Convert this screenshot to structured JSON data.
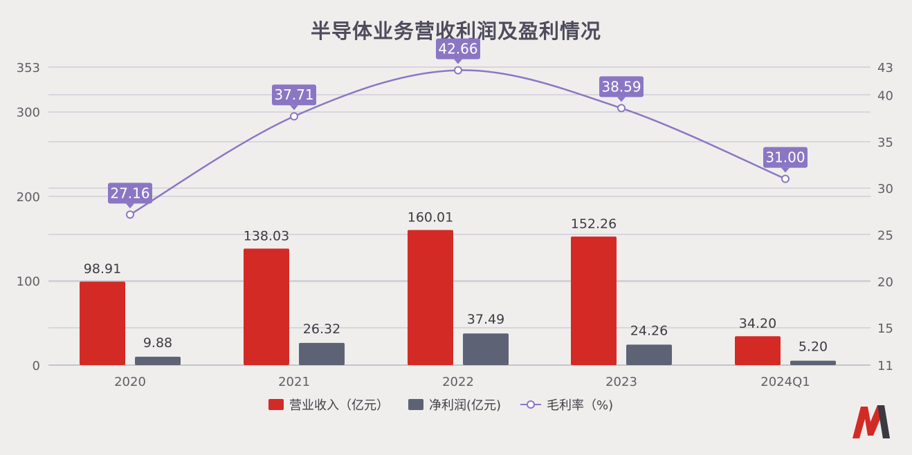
{
  "colors": {
    "revenue": "#d42a25",
    "profit": "#5e6275",
    "margin": "#8b76c4",
    "label_bg": "#8b76c4",
    "grid": "#c9c8d2",
    "axis_text": "#5e5e66",
    "title": "#4e4c5c"
  },
  "chart_data": {
    "type": "bar",
    "title": "半导体业务营收利润及盈利情况",
    "categories": [
      "2020",
      "2021",
      "2022",
      "2023",
      "2024Q1"
    ],
    "series": [
      {
        "name": "营业收入（亿元）",
        "type": "bar",
        "axis": "left",
        "values": [
          98.91,
          138.03,
          160.01,
          152.26,
          34.2
        ],
        "labels": [
          "98.91",
          "138.03",
          "160.01",
          "152.26",
          "34.20"
        ]
      },
      {
        "name": "净利润(亿元)",
        "type": "bar",
        "axis": "left",
        "values": [
          9.88,
          26.32,
          37.49,
          24.26,
          5.2
        ],
        "labels": [
          "9.88",
          "26.32",
          "37.49",
          "24.26",
          "5.20"
        ]
      },
      {
        "name": "毛利率（%)",
        "type": "line",
        "axis": "right",
        "values": [
          27.16,
          37.71,
          42.66,
          38.59,
          31.0
        ],
        "labels": [
          "27.16",
          "37.71",
          "42.66",
          "38.59",
          "31.00"
        ]
      }
    ],
    "left_axis": {
      "ticks": [
        0,
        100,
        200,
        300,
        353
      ],
      "tick_labels": [
        "0",
        "100",
        "200",
        "300",
        "353"
      ]
    },
    "right_axis": {
      "ticks": [
        11,
        15,
        20,
        25,
        30,
        35,
        40,
        43
      ],
      "tick_labels": [
        "11",
        "15",
        "20",
        "25",
        "30",
        "35",
        "40",
        "43"
      ]
    },
    "grid": true,
    "legend_position": "bottom"
  }
}
